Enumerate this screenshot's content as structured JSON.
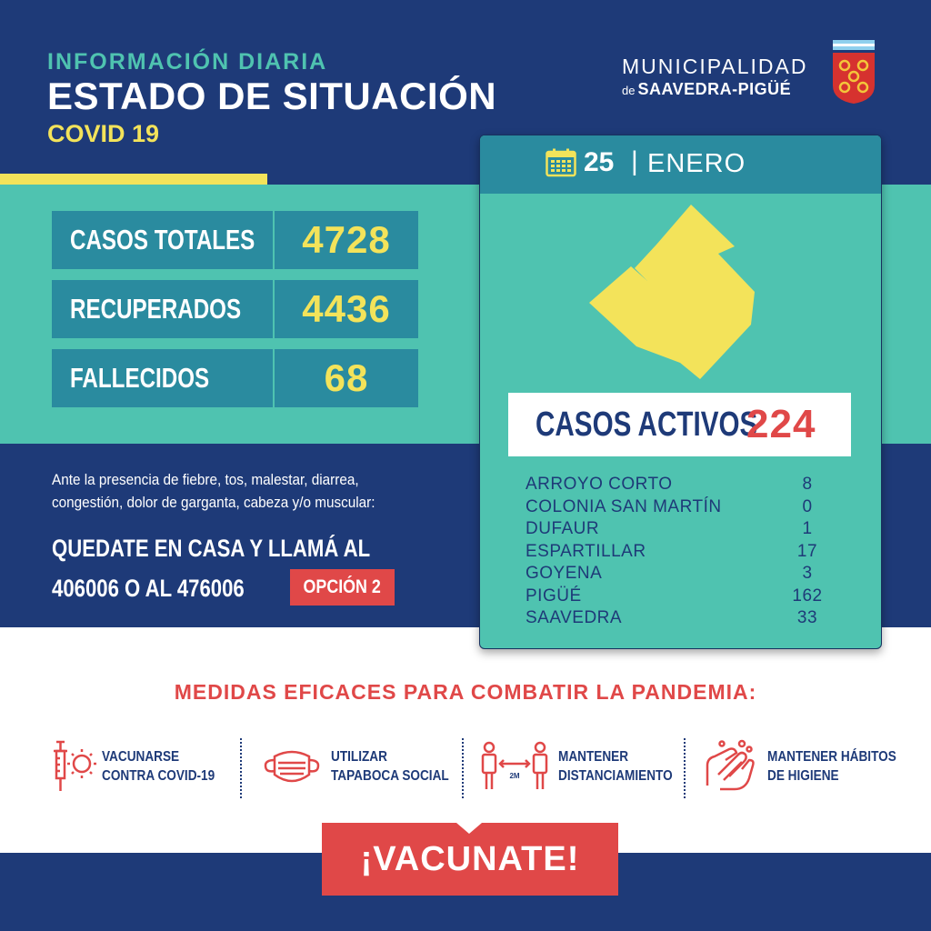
{
  "header": {
    "kicker": "INFORMACIÓN DIARIA",
    "title": "ESTADO DE SITUACIÓN",
    "subtitle": "COVID 19",
    "municipality_line1": "MUNICIPALIDAD",
    "municipality_de": "de",
    "municipality_name": "SAAVEDRA-PIGÜÉ"
  },
  "stats": [
    {
      "label": "CASOS TOTALES",
      "value": "4728"
    },
    {
      "label": "RECUPERADOS",
      "value": "4436"
    },
    {
      "label": "FALLECIDOS",
      "value": "68"
    }
  ],
  "advice": {
    "line1": "Ante la presencia de fiebre, tos, malestar, diarrea,",
    "line2": "congestión, dolor de garganta, cabeza y/o muscular:",
    "cta1": "QUEDATE EN CASA Y LLAMÁ AL",
    "cta2": "406006 O AL 476006",
    "option": "OPCIÓN 2"
  },
  "card": {
    "day": "25",
    "separator": "|",
    "month": "ENERO",
    "active_label": "CASOS ACTIVOS",
    "active_value": "224",
    "localities": [
      {
        "name": "ARROYO CORTO",
        "value": "8"
      },
      {
        "name": "COLONIA SAN MARTÍN",
        "value": "0"
      },
      {
        "name": "DUFAUR",
        "value": "1"
      },
      {
        "name": "ESPARTILLAR",
        "value": "17"
      },
      {
        "name": "GOYENA",
        "value": "3"
      },
      {
        "name": "PIGÜÉ",
        "value": "162"
      },
      {
        "name": "SAAVEDRA",
        "value": "33"
      }
    ]
  },
  "measures": {
    "title": "MEDIDAS EFICACES PARA COMBATIR LA PANDEMIA:",
    "items": [
      {
        "icon": "vaccine-icon",
        "line1": "VACUNARSE",
        "line2": "CONTRA COVID-19"
      },
      {
        "icon": "face-mask-icon",
        "line1": "UTILIZAR",
        "line2": "TAPABOCA SOCIAL"
      },
      {
        "icon": "distancing-icon",
        "line1": "MANTENER",
        "line2": "DISTANCIAMIENTO",
        "icon_label": "2M"
      },
      {
        "icon": "hand-washing-icon",
        "line1": "MANTENER HÁBITOS",
        "line2": "DE HIGIENE"
      }
    ]
  },
  "cta": {
    "label": "¡VACUNATE!"
  },
  "colors": {
    "navy": "#1e3a78",
    "teal": "#4fc3b0",
    "teal_dark": "#2a8b9f",
    "yellow": "#f3e35a",
    "red": "#e04848"
  }
}
